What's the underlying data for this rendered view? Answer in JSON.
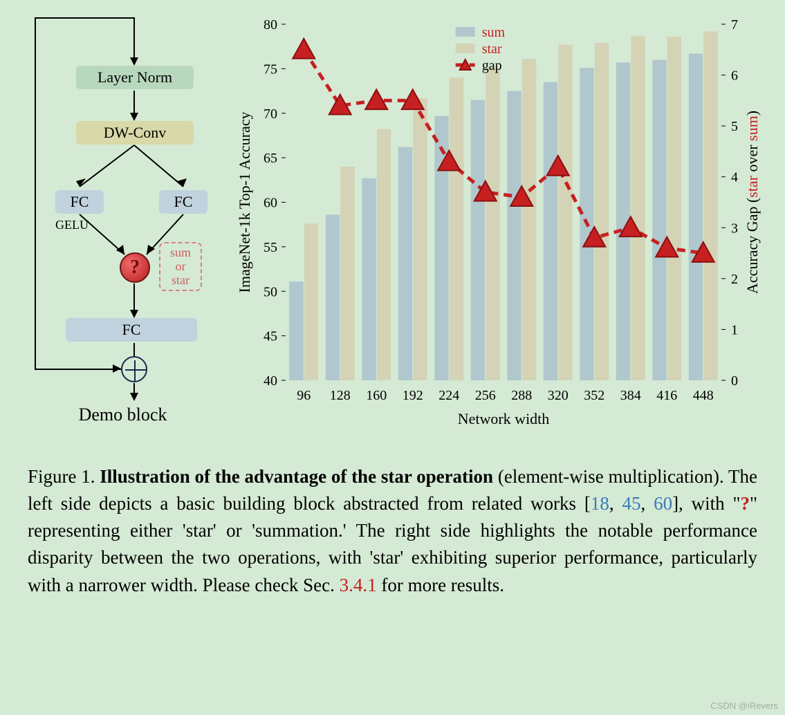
{
  "diagram": {
    "layer_norm": "Layer Norm",
    "dw_conv": "DW-Conv",
    "fc1": "FC",
    "fc2": "FC",
    "fc3": "FC",
    "gelu": "GELU",
    "question": "?",
    "sumstar": "sum\nor\nstar",
    "caption": "Demo block"
  },
  "chart": {
    "type": "grouped-bar + line (dual y-axis)",
    "x_label": "Network width",
    "y_left_label": "ImageNet-1k Top-1 Accuracy",
    "y_right_label_pre": "Accuracy Gap (",
    "y_right_label_star": "star",
    "y_right_label_mid": " over ",
    "y_right_label_sum": "sum",
    "y_right_label_post": ")",
    "categories": [
      "96",
      "128",
      "160",
      "192",
      "224",
      "256",
      "288",
      "320",
      "352",
      "384",
      "416",
      "448"
    ],
    "series_sum": [
      51.1,
      58.6,
      62.7,
      66.2,
      69.7,
      71.5,
      72.5,
      73.5,
      75.1,
      75.7,
      76.0,
      76.7
    ],
    "series_star": [
      57.6,
      64.0,
      68.2,
      71.7,
      74.0,
      75.2,
      76.1,
      77.7,
      77.9,
      78.7,
      78.6,
      79.2
    ],
    "series_gap": [
      6.5,
      5.4,
      5.5,
      5.5,
      4.3,
      3.7,
      3.6,
      4.2,
      2.8,
      3.0,
      2.6,
      2.5
    ],
    "y_left": {
      "min": 40,
      "max": 80,
      "ticks": [
        40,
        45,
        50,
        55,
        60,
        65,
        70,
        75,
        80
      ]
    },
    "y_right": {
      "min": 0,
      "max": 7,
      "ticks": [
        0,
        1,
        2,
        3,
        4,
        5,
        6,
        7
      ]
    },
    "colors": {
      "sum_bar": "#aac1cc",
      "star_bar": "#d4cfb0",
      "gap_line": "#c62020",
      "background": "#d5ead5",
      "text": "#000000"
    },
    "legend": {
      "sum": "sum",
      "star": "star",
      "gap": "gap"
    },
    "font_family": "Georgia, serif",
    "tick_fontsize": 20,
    "label_fontsize": 22,
    "bar_group_width": 0.8,
    "bar_gap": 0.02,
    "marker": "triangle",
    "marker_size": 16,
    "line_dash": "12 8",
    "line_width": 5
  },
  "caption": {
    "fig_prefix": "Figure 1. ",
    "bold_title": "Illustration of the advantage of the star operation",
    "part1": " (element-wise multiplication). The left side depicts a basic building block abstracted from related works [",
    "ref1": "18",
    "refsep1": ", ",
    "ref2": "45",
    "refsep2": ", ",
    "ref3": "60",
    "part2": "], with \"",
    "qmark": "?",
    "part3": "\" representing either 'star' or 'summation.' The right side highlights the notable performance disparity between the two operations, with 'star' exhibiting superior performance, particularly with a narrower width. Please check Sec. ",
    "sec": "3.4.1",
    "part4": " for more results."
  },
  "watermark": "CSDN @iRevers"
}
